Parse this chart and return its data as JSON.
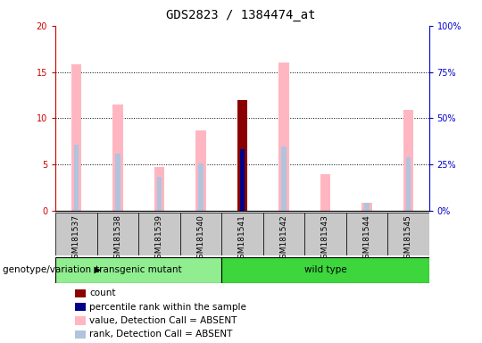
{
  "title": "GDS2823 / 1384474_at",
  "samples": [
    "GSM181537",
    "GSM181538",
    "GSM181539",
    "GSM181540",
    "GSM181541",
    "GSM181542",
    "GSM181543",
    "GSM181544",
    "GSM181545"
  ],
  "group_boundaries": [
    0,
    4,
    9
  ],
  "group_labels": [
    "transgenic mutant",
    "wild type"
  ],
  "group_colors": [
    "#90EE90",
    "#3DD63D"
  ],
  "ylim_left": [
    0,
    20
  ],
  "ylim_right": [
    0,
    100
  ],
  "yticks_left": [
    0,
    5,
    10,
    15,
    20
  ],
  "yticks_right": [
    0,
    25,
    50,
    75,
    100
  ],
  "ytick_labels_left": [
    "0",
    "5",
    "10",
    "15",
    "20"
  ],
  "ytick_labels_right": [
    "0%",
    "25%",
    "50%",
    "75%",
    "100%"
  ],
  "pink_bar_heights": [
    15.8,
    11.5,
    4.7,
    8.7,
    0,
    16.0,
    4.0,
    0.9,
    10.9
  ],
  "blue_bar_heights": [
    7.2,
    6.2,
    3.7,
    5.1,
    0,
    7.0,
    0,
    0.9,
    5.8
  ],
  "red_bar_heights": [
    0,
    0,
    0,
    0,
    12.0,
    0,
    0,
    0,
    0
  ],
  "dark_blue_bar_heights": [
    0,
    0,
    0,
    0,
    6.7,
    0,
    0,
    0,
    0
  ],
  "colors": {
    "red_bar": "#8B0000",
    "dark_blue_bar": "#00008B",
    "pink_bar": "#FFB6C1",
    "light_blue_bar": "#B0C4DE",
    "left_axis_color": "#CC0000",
    "right_axis_color": "#0000CC",
    "bg_gray": "#C8C8C8",
    "bg_green1": "#90EE90",
    "bg_green2": "#3DD63D"
  },
  "genotype_label": "genotype/variation",
  "legend_items": [
    {
      "label": "count",
      "color": "#8B0000"
    },
    {
      "label": "percentile rank within the sample",
      "color": "#00008B"
    },
    {
      "label": "value, Detection Call = ABSENT",
      "color": "#FFB6C1"
    },
    {
      "label": "rank, Detection Call = ABSENT",
      "color": "#B0C4DE"
    }
  ]
}
